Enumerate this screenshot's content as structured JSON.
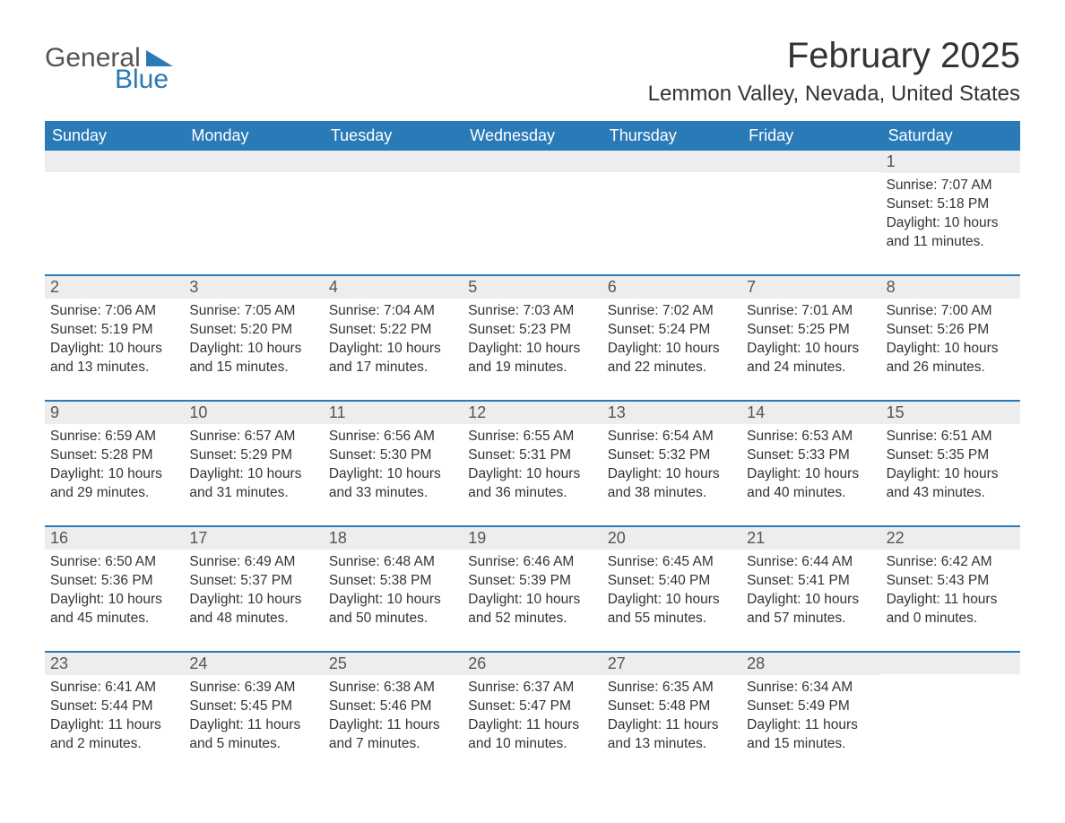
{
  "logo": {
    "text_general": "General",
    "text_blue": "Blue",
    "icon_color": "#2a7ab8"
  },
  "header": {
    "month_title": "February 2025",
    "location": "Lemmon Valley, Nevada, United States"
  },
  "colors": {
    "header_bg": "#2a7ab8",
    "header_text": "#ffffff",
    "daynum_bg": "#ededed",
    "border": "#2a7ab8",
    "text": "#333333",
    "logo_gray": "#555555"
  },
  "fonts": {
    "title_size_pt": 30,
    "location_size_pt": 18,
    "header_size_pt": 14,
    "body_size_pt": 12
  },
  "day_names": [
    "Sunday",
    "Monday",
    "Tuesday",
    "Wednesday",
    "Thursday",
    "Friday",
    "Saturday"
  ],
  "weeks": [
    [
      null,
      null,
      null,
      null,
      null,
      null,
      {
        "day": "1",
        "sunrise": "Sunrise: 7:07 AM",
        "sunset": "Sunset: 5:18 PM",
        "daylight": "Daylight: 10 hours and 11 minutes."
      }
    ],
    [
      {
        "day": "2",
        "sunrise": "Sunrise: 7:06 AM",
        "sunset": "Sunset: 5:19 PM",
        "daylight": "Daylight: 10 hours and 13 minutes."
      },
      {
        "day": "3",
        "sunrise": "Sunrise: 7:05 AM",
        "sunset": "Sunset: 5:20 PM",
        "daylight": "Daylight: 10 hours and 15 minutes."
      },
      {
        "day": "4",
        "sunrise": "Sunrise: 7:04 AM",
        "sunset": "Sunset: 5:22 PM",
        "daylight": "Daylight: 10 hours and 17 minutes."
      },
      {
        "day": "5",
        "sunrise": "Sunrise: 7:03 AM",
        "sunset": "Sunset: 5:23 PM",
        "daylight": "Daylight: 10 hours and 19 minutes."
      },
      {
        "day": "6",
        "sunrise": "Sunrise: 7:02 AM",
        "sunset": "Sunset: 5:24 PM",
        "daylight": "Daylight: 10 hours and 22 minutes."
      },
      {
        "day": "7",
        "sunrise": "Sunrise: 7:01 AM",
        "sunset": "Sunset: 5:25 PM",
        "daylight": "Daylight: 10 hours and 24 minutes."
      },
      {
        "day": "8",
        "sunrise": "Sunrise: 7:00 AM",
        "sunset": "Sunset: 5:26 PM",
        "daylight": "Daylight: 10 hours and 26 minutes."
      }
    ],
    [
      {
        "day": "9",
        "sunrise": "Sunrise: 6:59 AM",
        "sunset": "Sunset: 5:28 PM",
        "daylight": "Daylight: 10 hours and 29 minutes."
      },
      {
        "day": "10",
        "sunrise": "Sunrise: 6:57 AM",
        "sunset": "Sunset: 5:29 PM",
        "daylight": "Daylight: 10 hours and 31 minutes."
      },
      {
        "day": "11",
        "sunrise": "Sunrise: 6:56 AM",
        "sunset": "Sunset: 5:30 PM",
        "daylight": "Daylight: 10 hours and 33 minutes."
      },
      {
        "day": "12",
        "sunrise": "Sunrise: 6:55 AM",
        "sunset": "Sunset: 5:31 PM",
        "daylight": "Daylight: 10 hours and 36 minutes."
      },
      {
        "day": "13",
        "sunrise": "Sunrise: 6:54 AM",
        "sunset": "Sunset: 5:32 PM",
        "daylight": "Daylight: 10 hours and 38 minutes."
      },
      {
        "day": "14",
        "sunrise": "Sunrise: 6:53 AM",
        "sunset": "Sunset: 5:33 PM",
        "daylight": "Daylight: 10 hours and 40 minutes."
      },
      {
        "day": "15",
        "sunrise": "Sunrise: 6:51 AM",
        "sunset": "Sunset: 5:35 PM",
        "daylight": "Daylight: 10 hours and 43 minutes."
      }
    ],
    [
      {
        "day": "16",
        "sunrise": "Sunrise: 6:50 AM",
        "sunset": "Sunset: 5:36 PM",
        "daylight": "Daylight: 10 hours and 45 minutes."
      },
      {
        "day": "17",
        "sunrise": "Sunrise: 6:49 AM",
        "sunset": "Sunset: 5:37 PM",
        "daylight": "Daylight: 10 hours and 48 minutes."
      },
      {
        "day": "18",
        "sunrise": "Sunrise: 6:48 AM",
        "sunset": "Sunset: 5:38 PM",
        "daylight": "Daylight: 10 hours and 50 minutes."
      },
      {
        "day": "19",
        "sunrise": "Sunrise: 6:46 AM",
        "sunset": "Sunset: 5:39 PM",
        "daylight": "Daylight: 10 hours and 52 minutes."
      },
      {
        "day": "20",
        "sunrise": "Sunrise: 6:45 AM",
        "sunset": "Sunset: 5:40 PM",
        "daylight": "Daylight: 10 hours and 55 minutes."
      },
      {
        "day": "21",
        "sunrise": "Sunrise: 6:44 AM",
        "sunset": "Sunset: 5:41 PM",
        "daylight": "Daylight: 10 hours and 57 minutes."
      },
      {
        "day": "22",
        "sunrise": "Sunrise: 6:42 AM",
        "sunset": "Sunset: 5:43 PM",
        "daylight": "Daylight: 11 hours and 0 minutes."
      }
    ],
    [
      {
        "day": "23",
        "sunrise": "Sunrise: 6:41 AM",
        "sunset": "Sunset: 5:44 PM",
        "daylight": "Daylight: 11 hours and 2 minutes."
      },
      {
        "day": "24",
        "sunrise": "Sunrise: 6:39 AM",
        "sunset": "Sunset: 5:45 PM",
        "daylight": "Daylight: 11 hours and 5 minutes."
      },
      {
        "day": "25",
        "sunrise": "Sunrise: 6:38 AM",
        "sunset": "Sunset: 5:46 PM",
        "daylight": "Daylight: 11 hours and 7 minutes."
      },
      {
        "day": "26",
        "sunrise": "Sunrise: 6:37 AM",
        "sunset": "Sunset: 5:47 PM",
        "daylight": "Daylight: 11 hours and 10 minutes."
      },
      {
        "day": "27",
        "sunrise": "Sunrise: 6:35 AM",
        "sunset": "Sunset: 5:48 PM",
        "daylight": "Daylight: 11 hours and 13 minutes."
      },
      {
        "day": "28",
        "sunrise": "Sunrise: 6:34 AM",
        "sunset": "Sunset: 5:49 PM",
        "daylight": "Daylight: 11 hours and 15 minutes."
      },
      null
    ]
  ]
}
